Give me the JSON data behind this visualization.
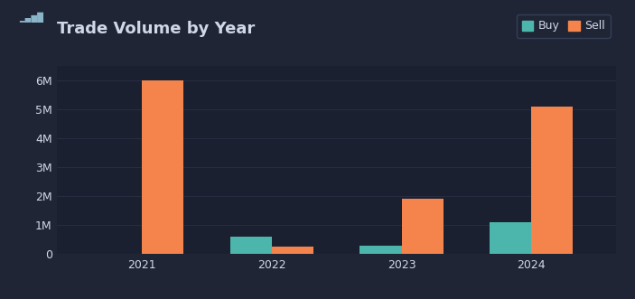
{
  "years": [
    "2021",
    "2022",
    "2023",
    "2024"
  ],
  "buy_values": [
    0,
    600000,
    300000,
    1100000
  ],
  "sell_values": [
    6000000,
    250000,
    1900000,
    5100000
  ],
  "buy_color": "#4db6ac",
  "sell_color": "#f5844c",
  "background_color": "#1f2535",
  "axes_bg_color": "#1a2030",
  "text_color": "#d0d8e8",
  "grid_color": "#2a3045",
  "title": "Trade Volume by Year",
  "legend_buy": "Buy",
  "legend_sell": "Sell",
  "ylim": [
    0,
    6500000
  ],
  "bar_width": 0.32,
  "title_fontsize": 13,
  "tick_fontsize": 9
}
